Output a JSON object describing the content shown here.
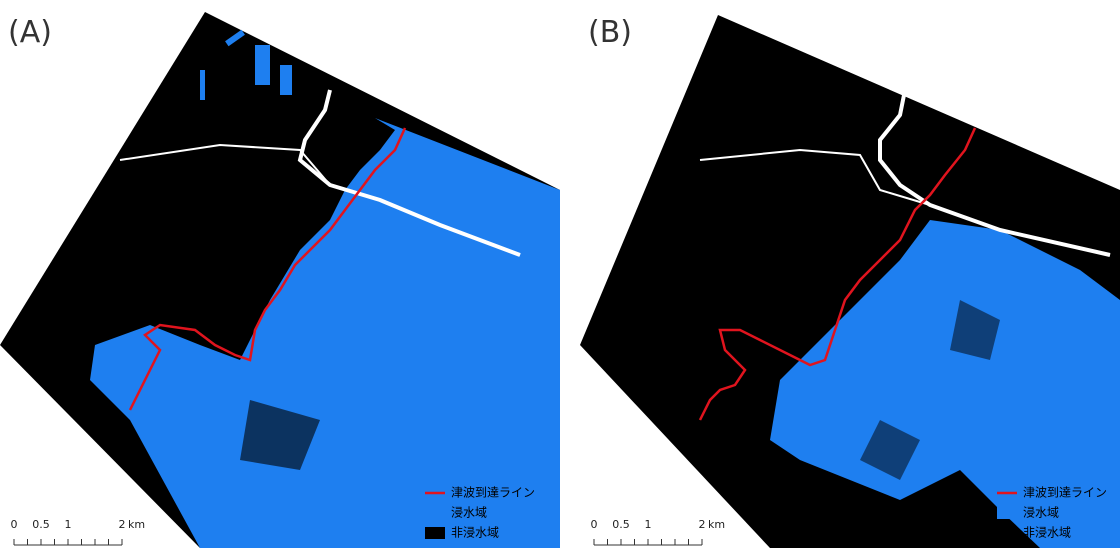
{
  "panels": [
    {
      "label": "(A)",
      "legend": [
        "津波到達ライン",
        "浸水域",
        "非浸水域"
      ],
      "scale": {
        "ticks": [
          "0",
          "0.5",
          "1",
          "2"
        ],
        "unit": "km"
      }
    },
    {
      "label": "(B)",
      "legend": [
        "津波到達ライン",
        "浸水域",
        "非浸水域"
      ],
      "scale": {
        "ticks": [
          "0",
          "0.5",
          "1",
          "2"
        ],
        "unit": "km"
      }
    }
  ]
}
